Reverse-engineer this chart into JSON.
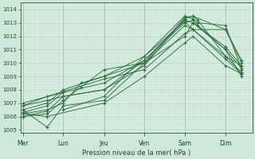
{
  "title": "",
  "xlabel": "Pression niveau de la mer( hPa )",
  "background_color": "#cde8d8",
  "plot_bg_color": "#d5ece0",
  "line_color": "#2d6e3a",
  "ylim": [
    1004.8,
    1014.5
  ],
  "yticks": [
    1005,
    1006,
    1007,
    1008,
    1009,
    1010,
    1011,
    1012,
    1013,
    1014
  ],
  "xtick_labels": [
    "Mer",
    "Lun",
    "Jeu",
    "Ven",
    "Sam",
    "Dim"
  ],
  "xtick_positions": [
    0.0,
    0.83,
    1.67,
    2.5,
    3.33,
    4.17
  ],
  "xlim": [
    -0.05,
    4.72
  ],
  "series": [
    {
      "x": [
        0.0,
        0.83,
        0.83,
        1.67,
        2.5,
        3.33,
        3.5,
        3.6,
        4.17,
        4.5
      ],
      "y": [
        1007.0,
        1007.8,
        1006.5,
        1007.5,
        1010.5,
        1013.5,
        1013.3,
        1013.0,
        1012.8,
        1009.5
      ]
    },
    {
      "x": [
        0.0,
        0.5,
        0.83,
        1.67,
        2.5,
        3.33,
        3.5,
        3.6,
        4.17,
        4.5
      ],
      "y": [
        1006.5,
        1005.2,
        1006.8,
        1007.2,
        1010.0,
        1013.4,
        1013.5,
        1013.2,
        1010.5,
        1009.3
      ]
    },
    {
      "x": [
        0.0,
        0.5,
        0.83,
        1.67,
        2.5,
        3.33,
        3.5,
        3.6,
        4.17,
        4.5
      ],
      "y": [
        1006.8,
        1007.2,
        1007.5,
        1008.0,
        1010.2,
        1013.0,
        1013.2,
        1012.8,
        1011.0,
        1009.0
      ]
    },
    {
      "x": [
        0.0,
        0.5,
        0.83,
        1.2,
        1.67,
        2.5,
        3.33,
        3.5,
        4.17,
        4.5
      ],
      "y": [
        1006.2,
        1006.5,
        1007.0,
        1008.5,
        1009.0,
        1010.5,
        1013.1,
        1012.5,
        1010.5,
        1009.8
      ]
    },
    {
      "x": [
        0.0,
        0.5,
        0.83,
        1.2,
        1.67,
        2.5,
        3.33,
        3.5,
        4.17,
        4.5
      ],
      "y": [
        1006.0,
        1006.2,
        1007.2,
        1008.2,
        1009.5,
        1010.0,
        1012.8,
        1012.5,
        1010.3,
        1009.2
      ]
    },
    {
      "x": [
        0.0,
        0.5,
        0.83,
        1.67,
        2.5,
        3.33,
        3.5,
        4.17,
        4.5
      ],
      "y": [
        1006.3,
        1006.8,
        1007.8,
        1008.5,
        1010.2,
        1013.2,
        1013.0,
        1011.2,
        1009.8
      ]
    },
    {
      "x": [
        0.0,
        0.5,
        0.83,
        1.67,
        2.5,
        3.33,
        3.5,
        4.17,
        4.5
      ],
      "y": [
        1006.0,
        1006.4,
        1007.5,
        1008.0,
        1009.8,
        1013.3,
        1013.5,
        1012.5,
        1010.0
      ]
    },
    {
      "x": [
        0.0,
        0.5,
        0.83,
        1.67,
        2.5,
        3.33,
        3.5,
        4.17,
        4.5
      ],
      "y": [
        1006.5,
        1007.0,
        1008.0,
        1009.0,
        1010.0,
        1012.0,
        1013.0,
        1011.0,
        1009.6
      ]
    },
    {
      "x": [
        0.0,
        0.5,
        1.67,
        2.5,
        3.33,
        3.5,
        4.17,
        4.5
      ],
      "y": [
        1006.8,
        1007.5,
        1008.8,
        1009.5,
        1012.2,
        1012.5,
        1012.5,
        1010.2
      ]
    },
    {
      "x": [
        0.0,
        0.5,
        1.67,
        2.5,
        3.33,
        3.5,
        4.17,
        4.5
      ],
      "y": [
        1006.2,
        1006.0,
        1007.0,
        1009.0,
        1011.5,
        1012.0,
        1009.8,
        1009.2
      ]
    }
  ],
  "figsize": [
    3.2,
    2.0
  ],
  "dpi": 100
}
